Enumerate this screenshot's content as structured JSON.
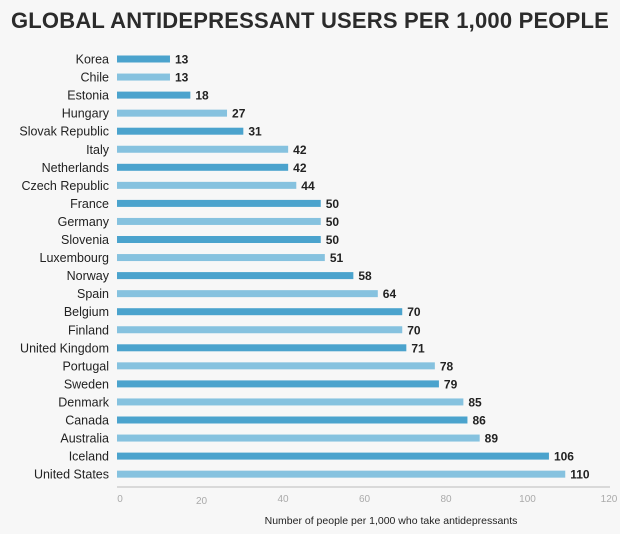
{
  "chart_data": {
    "type": "bar",
    "orientation": "horizontal",
    "title": "GLOBAL ANTIDEPRESSANT USERS PER 1,000 PEOPLE",
    "xlabel": "Number of people per 1,000 who take antidepressants",
    "ylabel": "",
    "xlim": [
      0,
      120
    ],
    "xticks": [
      0,
      20,
      40,
      60,
      80,
      100,
      120
    ],
    "grid": false,
    "categories": [
      "Korea",
      "Chile",
      "Estonia",
      "Hungary",
      "Slovak Republic",
      "Italy",
      "Netherlands",
      "Czech Republic",
      "France",
      "Germany",
      "Slovenia",
      "Luxembourg",
      "Norway",
      "Spain",
      "Belgium",
      "Finland",
      "United Kingdom",
      "Portugal",
      "Sweden",
      "Denmark",
      "Canada",
      "Australia",
      "Iceland",
      "United States"
    ],
    "values": [
      13,
      13,
      18,
      27,
      31,
      42,
      42,
      44,
      50,
      50,
      50,
      51,
      58,
      64,
      70,
      70,
      71,
      78,
      79,
      85,
      86,
      89,
      106,
      110
    ],
    "colors": [
      "#4ba3cd",
      "#86c2df"
    ]
  }
}
